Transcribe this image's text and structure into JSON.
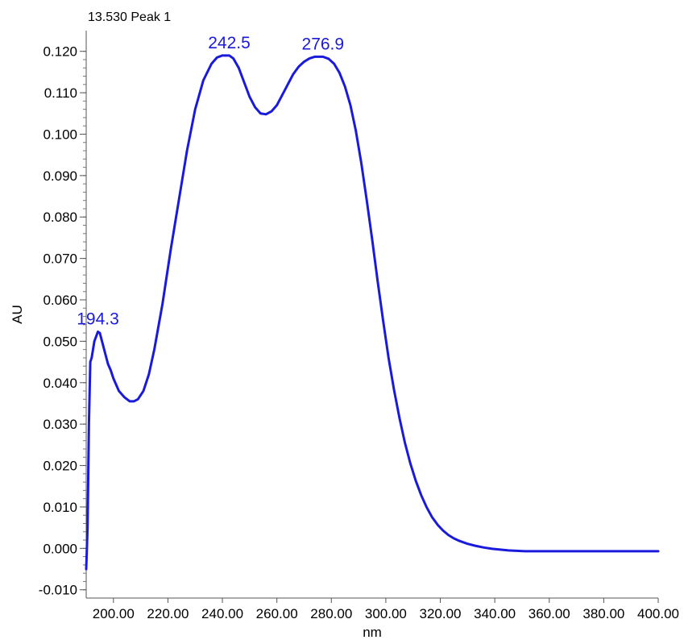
{
  "chart_data": {
    "type": "line",
    "title": "13.530 Peak 1",
    "xlabel": "nm",
    "ylabel": "AU",
    "xlim": [
      190,
      400
    ],
    "ylim": [
      -0.012,
      0.125
    ],
    "grid": false,
    "line_color": "#1a1adc",
    "annotation_color": "#1a1adc",
    "x_ticks": [
      {
        "value": 200,
        "label": "200.00"
      },
      {
        "value": 220,
        "label": "220.00"
      },
      {
        "value": 240,
        "label": "240.00"
      },
      {
        "value": 260,
        "label": "260.00"
      },
      {
        "value": 280,
        "label": "280.00"
      },
      {
        "value": 300,
        "label": "300.00"
      },
      {
        "value": 320,
        "label": "320.00"
      },
      {
        "value": 340,
        "label": "340.00"
      },
      {
        "value": 360,
        "label": "360.00"
      },
      {
        "value": 380,
        "label": "380.00"
      },
      {
        "value": 400,
        "label": "400.00"
      }
    ],
    "y_ticks": [
      {
        "value": -0.01,
        "label": "-0.010"
      },
      {
        "value": 0.0,
        "label": "0.000"
      },
      {
        "value": 0.01,
        "label": "0.010"
      },
      {
        "value": 0.02,
        "label": "0.020"
      },
      {
        "value": 0.03,
        "label": "0.030"
      },
      {
        "value": 0.04,
        "label": "0.040"
      },
      {
        "value": 0.05,
        "label": "0.050"
      },
      {
        "value": 0.06,
        "label": "0.060"
      },
      {
        "value": 0.07,
        "label": "0.070"
      },
      {
        "value": 0.08,
        "label": "0.080"
      },
      {
        "value": 0.09,
        "label": "0.090"
      },
      {
        "value": 0.1,
        "label": "0.100"
      },
      {
        "value": 0.11,
        "label": "0.110"
      },
      {
        "value": 0.12,
        "label": "0.120"
      }
    ],
    "annotations": [
      {
        "text": "194.3",
        "x": 194.3,
        "y": 0.0523
      },
      {
        "text": "242.5",
        "x": 242.5,
        "y": 0.119
      },
      {
        "text": "276.9",
        "x": 276.9,
        "y": 0.1187
      }
    ],
    "series": [
      {
        "x": [
          190,
          190.5,
          191,
          191.5,
          192,
          193,
          194.3,
          195,
          196,
          197,
          198,
          199,
          200,
          202,
          204,
          206,
          207.5,
          209,
          211,
          213,
          215,
          218,
          221,
          224,
          227,
          230,
          233,
          236,
          238,
          240,
          242.5,
          244,
          246,
          248,
          250,
          252,
          254,
          256,
          258,
          260,
          262,
          264,
          266,
          268,
          270,
          272,
          274,
          276.9,
          279,
          281,
          283,
          285,
          287,
          289,
          291,
          293,
          295,
          297,
          299,
          301,
          303,
          305,
          307,
          309,
          311,
          313,
          315,
          317,
          319,
          321,
          323,
          325,
          327,
          330,
          333,
          336,
          339,
          342,
          345,
          348,
          351,
          354,
          357,
          360,
          365,
          370,
          375,
          380,
          385,
          390,
          395,
          400
        ],
        "y": [
          -0.005,
          0.005,
          0.03,
          0.045,
          0.046,
          0.05,
          0.0523,
          0.052,
          0.0495,
          0.047,
          0.0445,
          0.043,
          0.041,
          0.038,
          0.0365,
          0.0355,
          0.0355,
          0.036,
          0.038,
          0.042,
          0.048,
          0.059,
          0.072,
          0.084,
          0.096,
          0.106,
          0.113,
          0.117,
          0.1185,
          0.119,
          0.119,
          0.1183,
          0.116,
          0.1125,
          0.109,
          0.1065,
          0.105,
          0.1048,
          0.1055,
          0.107,
          0.1095,
          0.112,
          0.1145,
          0.1163,
          0.1175,
          0.1183,
          0.1187,
          0.1187,
          0.1182,
          0.117,
          0.1148,
          0.1115,
          0.107,
          0.1008,
          0.093,
          0.084,
          0.0745,
          0.0645,
          0.055,
          0.046,
          0.0383,
          0.0315,
          0.0255,
          0.0205,
          0.0163,
          0.0128,
          0.0099,
          0.0075,
          0.0057,
          0.0043,
          0.0032,
          0.0024,
          0.0018,
          0.0011,
          0.0006,
          0.0002,
          -0.0001,
          -0.0003,
          -0.0005,
          -0.0006,
          -0.0007,
          -0.0007,
          -0.0007,
          -0.0007,
          -0.0007,
          -0.0007,
          -0.0007,
          -0.0007,
          -0.0007,
          -0.0007,
          -0.0007,
          -0.0007
        ]
      }
    ]
  }
}
